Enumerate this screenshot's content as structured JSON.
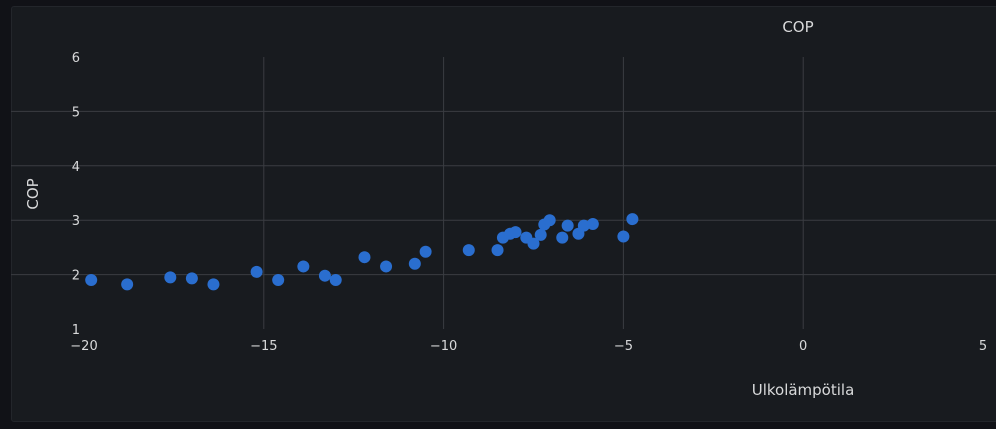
{
  "chart_data": {
    "type": "scatter",
    "title": "COP",
    "xlabel": "Ulkolämpötila",
    "ylabel": "COP",
    "xlim": [
      -20,
      5
    ],
    "ylim": [
      1,
      6
    ],
    "xticks": [
      -20,
      -15,
      -10,
      -5,
      0,
      5
    ],
    "yticks": [
      1,
      2,
      3,
      4,
      5,
      6
    ],
    "xtick_labels": [
      "−20",
      "−15",
      "−10",
      "−5",
      "0",
      "5"
    ],
    "ytick_labels": [
      "1",
      "2",
      "3",
      "4",
      "5",
      "6"
    ],
    "grid": true,
    "point_color": "#2a6ecf",
    "series": [
      {
        "points": [
          [
            -19.8,
            1.9
          ],
          [
            -18.8,
            1.82
          ],
          [
            -17.6,
            1.95
          ],
          [
            -17.0,
            1.93
          ],
          [
            -16.4,
            1.82
          ],
          [
            -15.2,
            2.05
          ],
          [
            -14.6,
            1.9
          ],
          [
            -13.9,
            2.15
          ],
          [
            -13.3,
            1.98
          ],
          [
            -13.0,
            1.9
          ],
          [
            -12.2,
            2.32
          ],
          [
            -11.6,
            2.15
          ],
          [
            -10.8,
            2.2
          ],
          [
            -10.5,
            2.42
          ],
          [
            -9.3,
            2.45
          ],
          [
            -8.5,
            2.45
          ],
          [
            -8.35,
            2.68
          ],
          [
            -8.15,
            2.75
          ],
          [
            -8.0,
            2.78
          ],
          [
            -7.7,
            2.68
          ],
          [
            -7.5,
            2.57
          ],
          [
            -7.3,
            2.73
          ],
          [
            -7.2,
            2.92
          ],
          [
            -7.05,
            3.0
          ],
          [
            -6.7,
            2.68
          ],
          [
            -6.55,
            2.9
          ],
          [
            -6.25,
            2.75
          ],
          [
            -6.1,
            2.9
          ],
          [
            -5.85,
            2.93
          ],
          [
            -5.0,
            2.7
          ],
          [
            -4.75,
            3.02
          ]
        ]
      }
    ]
  }
}
